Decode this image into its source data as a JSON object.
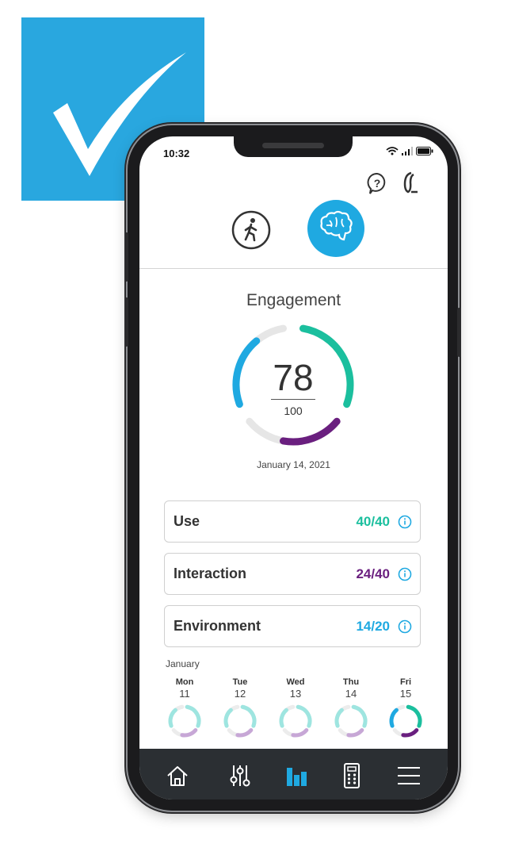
{
  "badge": {
    "icon": "checkmark-icon",
    "color": "#29a7df"
  },
  "status_bar": {
    "time": "10:32",
    "icons": [
      "wifi-icon",
      "signal-icon",
      "battery-icon"
    ]
  },
  "header": {
    "icons": [
      "help-icon",
      "hearing-aid-icon"
    ]
  },
  "modes": {
    "items": [
      {
        "icon": "walking-person-icon",
        "active": false
      },
      {
        "icon": "brain-icon",
        "active": true
      }
    ],
    "active_color": "#1fa9e1"
  },
  "engagement": {
    "title": "Engagement",
    "score": "78",
    "max": "100",
    "date": "January 14, 2021",
    "segments": {
      "use": 40,
      "interaction": 24,
      "environment": 14
    }
  },
  "cards": [
    {
      "label": "Use",
      "value": "40/40",
      "color": "#1bbf9e"
    },
    {
      "label": "Interaction",
      "value": "24/40",
      "color": "#6a1f7f"
    },
    {
      "label": "Environment",
      "value": "14/20",
      "color": "#1fa9e1"
    }
  ],
  "week": {
    "month": "January",
    "days": [
      {
        "name": "Mon",
        "num": "11",
        "active": false
      },
      {
        "name": "Tue",
        "num": "12",
        "active": false
      },
      {
        "name": "Wed",
        "num": "13",
        "active": false
      },
      {
        "name": "Thu",
        "num": "14",
        "active": false
      },
      {
        "name": "Fri",
        "num": "15",
        "active": true
      }
    ]
  },
  "nav": {
    "items": [
      "home-icon",
      "sliders-icon",
      "bar-chart-icon",
      "remote-icon",
      "menu-icon"
    ],
    "active_index": 2,
    "active_color": "#1fa9e1"
  },
  "colors": {
    "green": "#1bbf9e",
    "purple": "#6a1f7f",
    "blue": "#1fa9e1",
    "track": "#e6e6e6"
  }
}
